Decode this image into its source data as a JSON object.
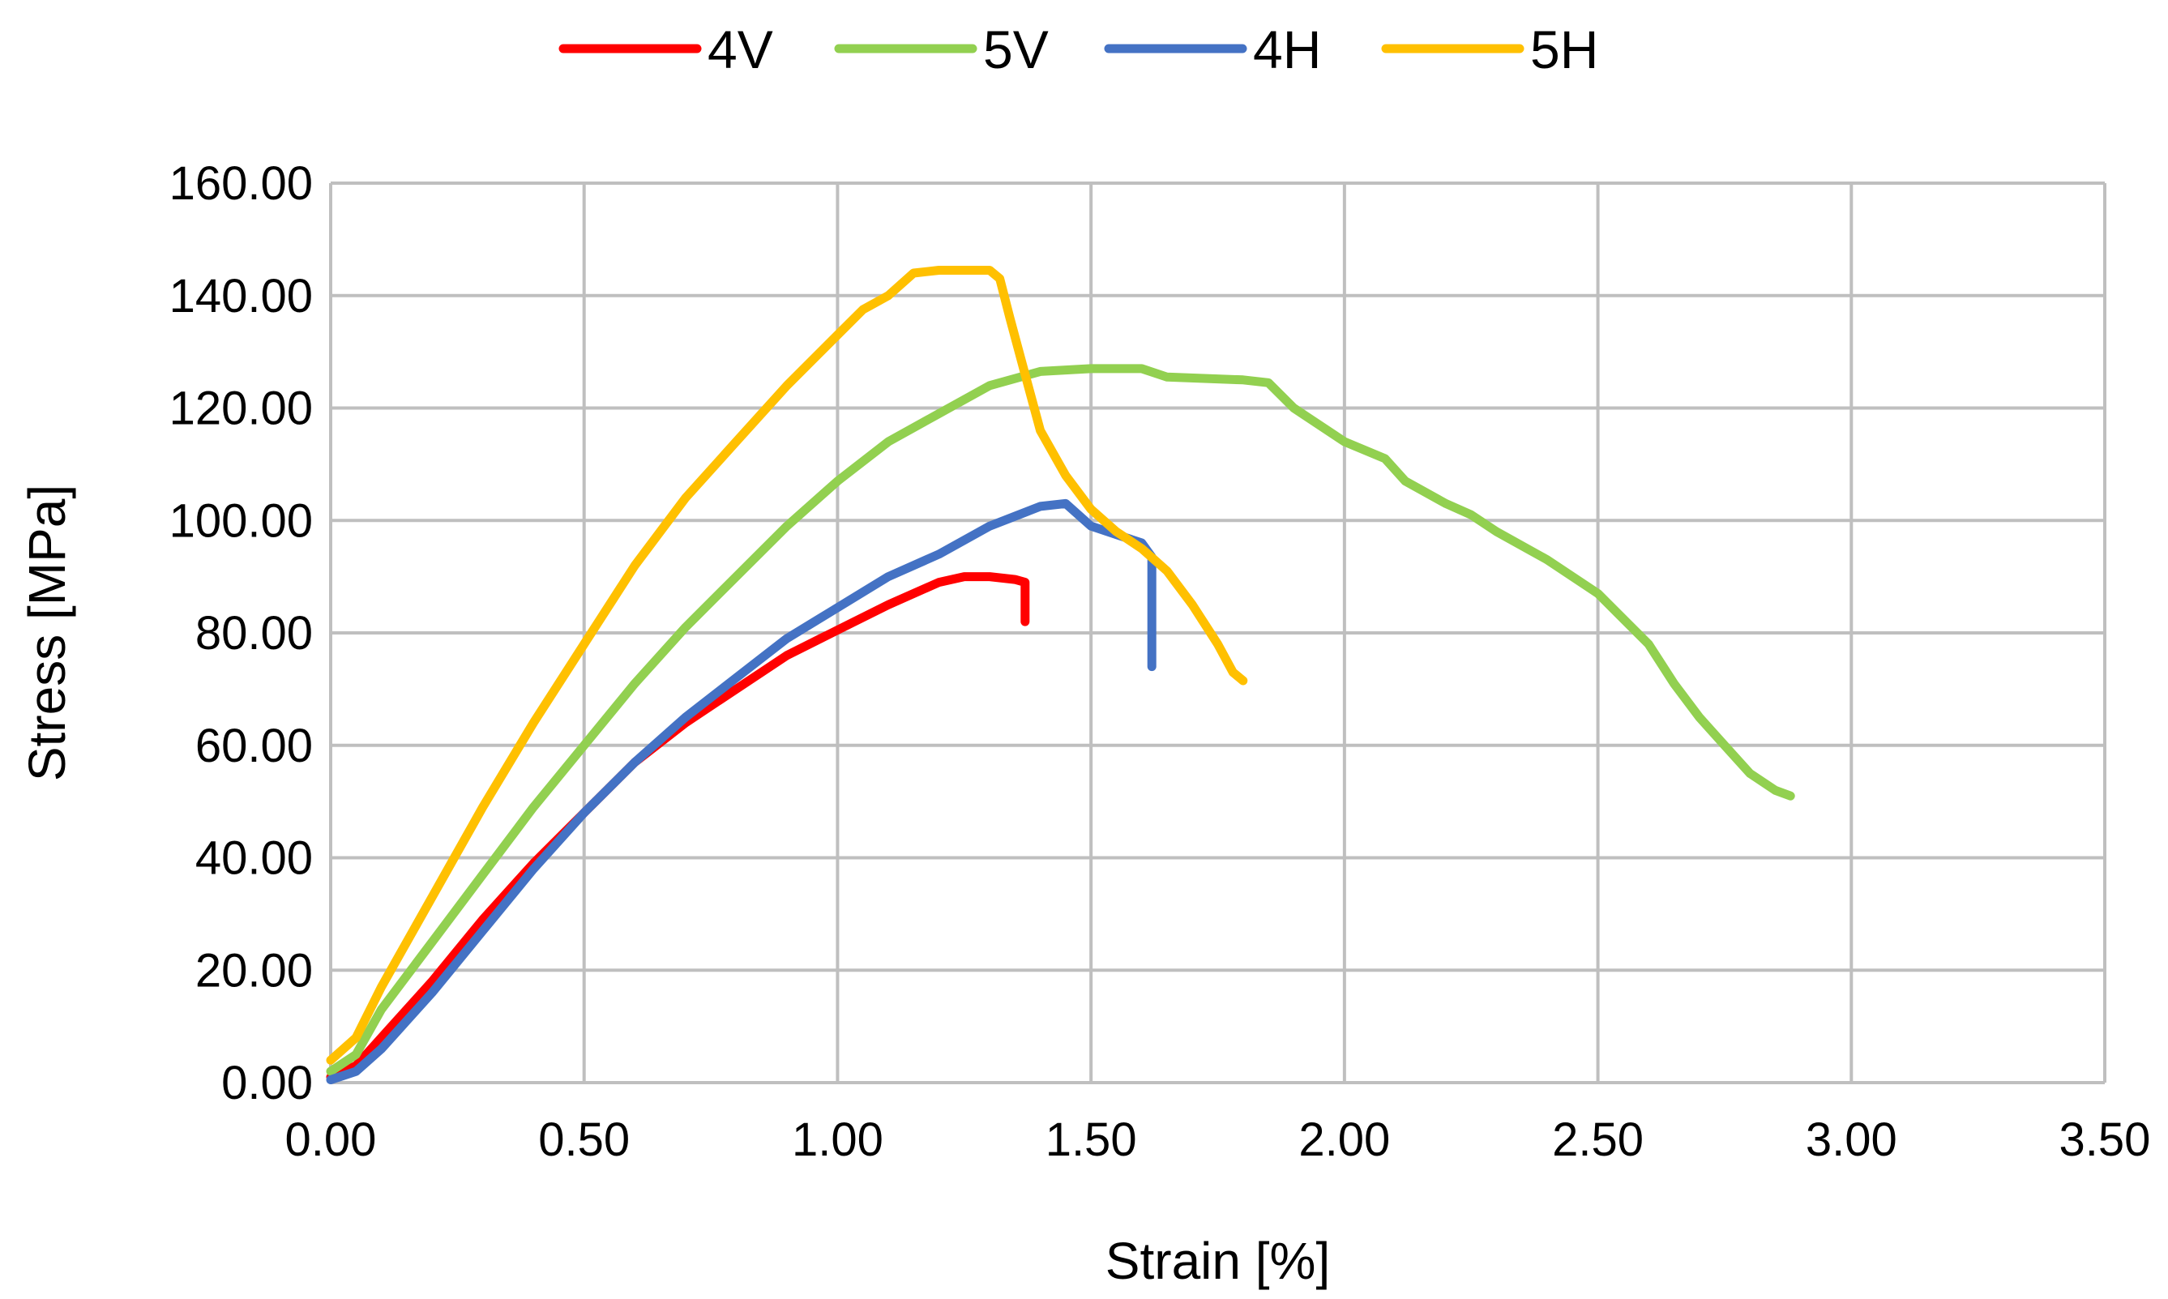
{
  "chart_data": {
    "type": "line",
    "title": "",
    "xlabel": "Strain [%]",
    "ylabel": "Stress [MPa]",
    "xlim": [
      0,
      3.5
    ],
    "ylim": [
      0,
      160
    ],
    "x_ticks": [
      0,
      0.5,
      1.0,
      1.5,
      2.0,
      2.5,
      3.0,
      3.5
    ],
    "x_tick_labels": [
      "0.00",
      "0.50",
      "1.00",
      "1.50",
      "2.00",
      "2.50",
      "3.00",
      "3.50"
    ],
    "y_ticks": [
      0,
      20,
      40,
      60,
      80,
      100,
      120,
      140,
      160
    ],
    "y_tick_labels": [
      "0.00",
      "20.00",
      "40.00",
      "60.00",
      "80.00",
      "100.00",
      "120.00",
      "140.00",
      "160.00"
    ],
    "grid": true,
    "legend_position": "top-center",
    "series": [
      {
        "name": "4V",
        "color": "#ff0000",
        "points": [
          [
            0,
            1
          ],
          [
            0.05,
            3
          ],
          [
            0.1,
            8
          ],
          [
            0.2,
            18
          ],
          [
            0.3,
            29
          ],
          [
            0.4,
            39
          ],
          [
            0.5,
            48
          ],
          [
            0.6,
            57
          ],
          [
            0.7,
            64
          ],
          [
            0.8,
            70
          ],
          [
            0.9,
            76
          ],
          [
            1.0,
            80.5
          ],
          [
            1.1,
            85
          ],
          [
            1.2,
            89
          ],
          [
            1.25,
            90
          ],
          [
            1.3,
            90
          ],
          [
            1.35,
            89.5
          ],
          [
            1.37,
            89
          ],
          [
            1.37,
            82
          ]
        ]
      },
      {
        "name": "5V",
        "color": "#92d050",
        "points": [
          [
            0,
            2
          ],
          [
            0.05,
            5
          ],
          [
            0.1,
            13
          ],
          [
            0.2,
            25
          ],
          [
            0.3,
            37
          ],
          [
            0.4,
            49
          ],
          [
            0.5,
            60
          ],
          [
            0.6,
            71
          ],
          [
            0.7,
            81
          ],
          [
            0.8,
            90
          ],
          [
            0.9,
            99
          ],
          [
            1.0,
            107
          ],
          [
            1.1,
            114
          ],
          [
            1.2,
            119
          ],
          [
            1.3,
            124
          ],
          [
            1.4,
            126.5
          ],
          [
            1.5,
            127
          ],
          [
            1.6,
            127
          ],
          [
            1.65,
            125.5
          ],
          [
            1.8,
            125
          ],
          [
            1.85,
            124.5
          ],
          [
            1.9,
            120
          ],
          [
            2.0,
            114
          ],
          [
            2.08,
            111
          ],
          [
            2.12,
            107
          ],
          [
            2.2,
            103
          ],
          [
            2.25,
            101
          ],
          [
            2.3,
            98
          ],
          [
            2.4,
            93
          ],
          [
            2.5,
            87
          ],
          [
            2.6,
            78
          ],
          [
            2.65,
            71
          ],
          [
            2.7,
            65
          ],
          [
            2.75,
            60
          ],
          [
            2.8,
            55
          ],
          [
            2.85,
            52
          ],
          [
            2.88,
            51
          ]
        ]
      },
      {
        "name": "4H",
        "color": "#4472c4",
        "points": [
          [
            0,
            0.5
          ],
          [
            0.05,
            2
          ],
          [
            0.1,
            6
          ],
          [
            0.2,
            16
          ],
          [
            0.3,
            27
          ],
          [
            0.4,
            38
          ],
          [
            0.5,
            48
          ],
          [
            0.6,
            57
          ],
          [
            0.7,
            65
          ],
          [
            0.8,
            72
          ],
          [
            0.9,
            79
          ],
          [
            1.0,
            84.5
          ],
          [
            1.1,
            90
          ],
          [
            1.2,
            94
          ],
          [
            1.3,
            99
          ],
          [
            1.4,
            102.5
          ],
          [
            1.45,
            103
          ],
          [
            1.5,
            99
          ],
          [
            1.55,
            97.5
          ],
          [
            1.6,
            96
          ],
          [
            1.62,
            93.5
          ],
          [
            1.62,
            74
          ]
        ]
      },
      {
        "name": "5H",
        "color": "#ffc000",
        "points": [
          [
            0,
            4
          ],
          [
            0.05,
            8
          ],
          [
            0.1,
            17
          ],
          [
            0.2,
            33
          ],
          [
            0.3,
            49
          ],
          [
            0.4,
            64
          ],
          [
            0.5,
            78
          ],
          [
            0.6,
            92
          ],
          [
            0.7,
            104
          ],
          [
            0.8,
            114
          ],
          [
            0.9,
            124
          ],
          [
            1.0,
            133
          ],
          [
            1.05,
            137.5
          ],
          [
            1.1,
            140
          ],
          [
            1.15,
            144
          ],
          [
            1.2,
            144.5
          ],
          [
            1.3,
            144.5
          ],
          [
            1.32,
            143
          ],
          [
            1.34,
            136
          ],
          [
            1.37,
            126
          ],
          [
            1.4,
            116
          ],
          [
            1.45,
            108
          ],
          [
            1.5,
            102
          ],
          [
            1.55,
            98
          ],
          [
            1.6,
            95
          ],
          [
            1.65,
            91
          ],
          [
            1.7,
            85
          ],
          [
            1.75,
            78
          ],
          [
            1.78,
            73
          ],
          [
            1.8,
            71.5
          ]
        ]
      }
    ]
  }
}
